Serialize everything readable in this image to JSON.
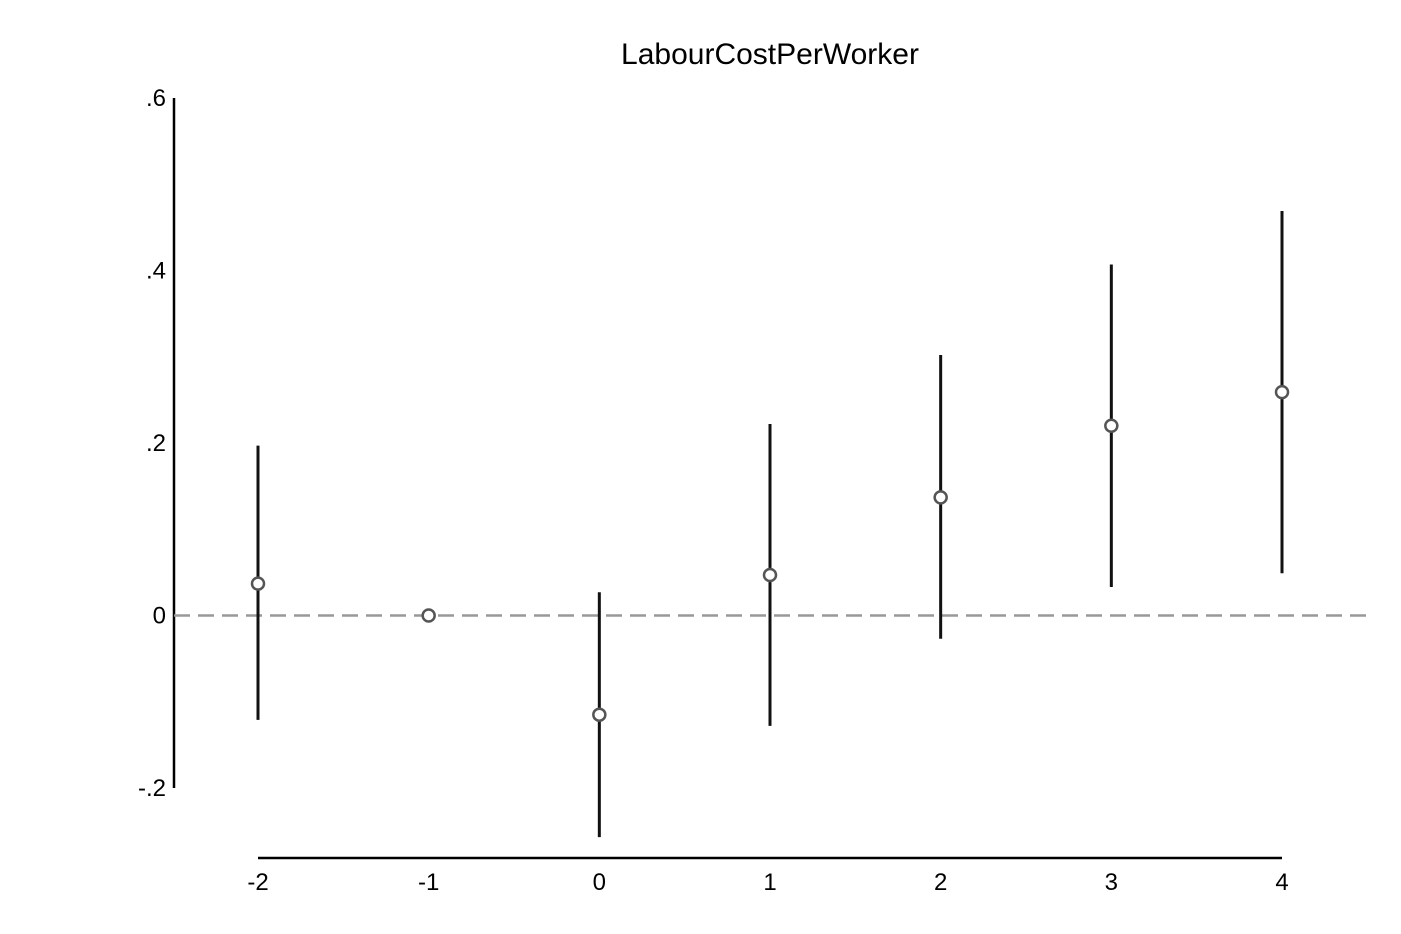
{
  "chart_data": {
    "type": "scatter",
    "title": "LabourCostPerWorker",
    "xlabel": "",
    "ylabel": "",
    "x_ticks": [
      "-2",
      "-1",
      "0",
      "1",
      "2",
      "3",
      "4"
    ],
    "y_ticks": [
      ".6",
      ".4",
      ".2",
      "0",
      "-.2"
    ],
    "x": [
      -2,
      -1,
      0,
      1,
      2,
      3,
      4
    ],
    "estimate": [
      0.037,
      0.0,
      -0.115,
      0.047,
      0.137,
      0.22,
      0.259
    ],
    "ci_lower": [
      -0.121,
      null,
      -0.257,
      -0.128,
      -0.027,
      0.033,
      0.049
    ],
    "ci_upper": [
      0.197,
      null,
      0.027,
      0.222,
      0.302,
      0.407,
      0.469
    ],
    "xlim": [
      -2,
      4
    ],
    "ylim": [
      -0.2,
      0.6
    ],
    "reference_line": 0,
    "grid": false,
    "colors": {
      "marker": "#555555",
      "ci_line": "#111111",
      "reference_line": "#999999",
      "axis": "#000000"
    }
  }
}
